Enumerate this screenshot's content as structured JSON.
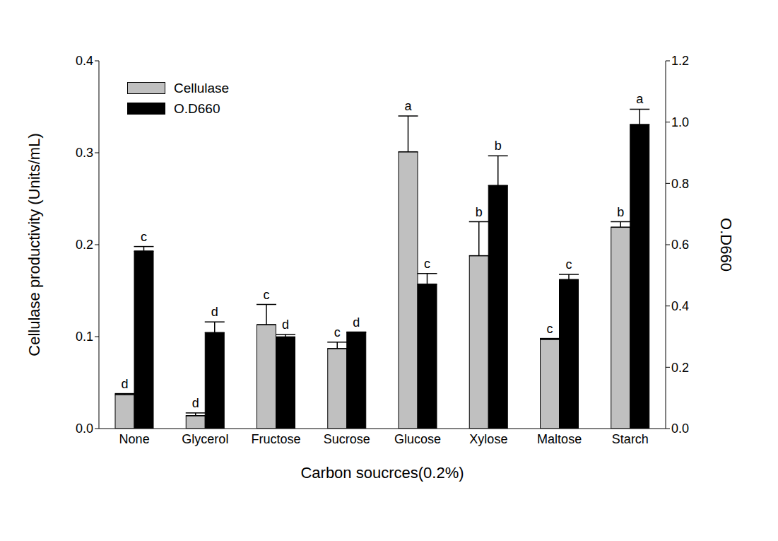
{
  "chart_data": {
    "type": "bar",
    "x_label": "Carbon soucrces(0.2%)",
    "y_label": "Cellulase productivity (Units/mL)",
    "y2_label": "O.D660",
    "categories": [
      "None",
      "Glycerol",
      "Fructose",
      "Sucrose",
      "Glucose",
      "Xylose",
      "Maltose",
      "Starch"
    ],
    "series": [
      {
        "name": "Cellulase",
        "color": "#c0c0c0",
        "values": [
          0.037,
          0.014,
          0.113,
          0.087,
          0.301,
          0.188,
          0.097,
          0.219
        ],
        "errors": [
          0.001,
          0.003,
          0.022,
          0.007,
          0.039,
          0.037,
          0.001,
          0.006
        ],
        "letters": [
          "d",
          "d",
          "c",
          "c",
          "a",
          "b",
          "c",
          "b"
        ]
      },
      {
        "name": "O.D660",
        "color": "#000000",
        "axis": "y2",
        "values": [
          0.579,
          0.313,
          0.299,
          0.313,
          0.471,
          0.793,
          0.486,
          0.992
        ],
        "errors": [
          0.015,
          0.035,
          0.008,
          0.002,
          0.035,
          0.097,
          0.017,
          0.05
        ],
        "letters": [
          "c",
          "d",
          "d",
          "d",
          "c",
          "b",
          "c",
          "a"
        ]
      }
    ],
    "ylim": [
      0,
      0.4
    ],
    "yticks": [
      {
        "value": 0,
        "label": "0.0"
      },
      0.1,
      0.2,
      0.3,
      0.4
    ],
    "y2lim": [
      0,
      1.2
    ],
    "y2ticks": [
      {
        "value": 0,
        "label": "0.0"
      },
      0.2,
      0.4,
      0.6,
      0.8,
      {
        "value": 1,
        "label": "1.0"
      },
      1.2
    ],
    "legend": "upper left",
    "grid": false
  }
}
